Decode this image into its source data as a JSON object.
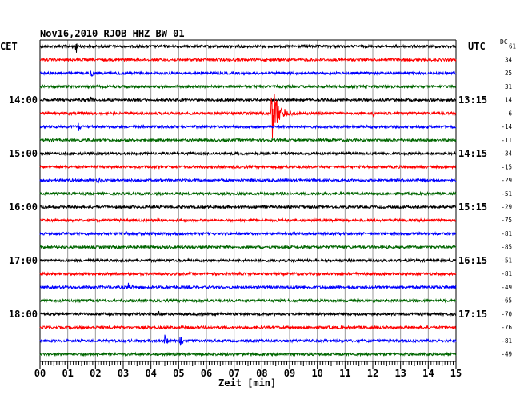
{
  "header": {
    "title": "Nov16,2010  RJOB HHZ BW 01",
    "left_timezone": "CET",
    "right_timezone": "UTC",
    "offset_header": "DC"
  },
  "x_axis": {
    "label": "Zeit [min]",
    "ticks": [
      "00",
      "01",
      "02",
      "03",
      "04",
      "05",
      "06",
      "07",
      "08",
      "09",
      "10",
      "11",
      "12",
      "13",
      "14",
      "15"
    ]
  },
  "trace_colors": [
    "#000000",
    "#ff0000",
    "#0000ff",
    "#006600"
  ],
  "traces": [
    {
      "left": "",
      "right": "",
      "offset": "61"
    },
    {
      "left": "",
      "right": "",
      "offset": "34"
    },
    {
      "left": "",
      "right": "",
      "offset": "25"
    },
    {
      "left": "",
      "right": "",
      "offset": "31"
    },
    {
      "left": "14:00",
      "right": "13:15",
      "offset": "14"
    },
    {
      "left": "",
      "right": "",
      "offset": "-6"
    },
    {
      "left": "",
      "right": "",
      "offset": "-14"
    },
    {
      "left": "",
      "right": "",
      "offset": "-11"
    },
    {
      "left": "15:00",
      "right": "14:15",
      "offset": "-34"
    },
    {
      "left": "",
      "right": "",
      "offset": "-15"
    },
    {
      "left": "",
      "right": "",
      "offset": "-29"
    },
    {
      "left": "",
      "right": "",
      "offset": "-51"
    },
    {
      "left": "16:00",
      "right": "15:15",
      "offset": "-29"
    },
    {
      "left": "",
      "right": "",
      "offset": "-75"
    },
    {
      "left": "",
      "right": "",
      "offset": "-81"
    },
    {
      "left": "",
      "right": "",
      "offset": "-85"
    },
    {
      "left": "17:00",
      "right": "16:15",
      "offset": "-51"
    },
    {
      "left": "",
      "right": "",
      "offset": "-81"
    },
    {
      "left": "",
      "right": "",
      "offset": "-49"
    },
    {
      "left": "",
      "right": "",
      "offset": "-65"
    },
    {
      "left": "18:00",
      "right": "17:15",
      "offset": "-70"
    },
    {
      "left": "",
      "right": "",
      "offset": "-76"
    },
    {
      "left": "",
      "right": "",
      "offset": "-81"
    },
    {
      "left": "",
      "right": "",
      "offset": "-49"
    }
  ],
  "events": [
    {
      "trace": 0,
      "minute": 1.3,
      "amplitude": 8
    },
    {
      "trace": 2,
      "minute": 1.85,
      "amplitude": 6
    },
    {
      "trace": 4,
      "minute": 1.85,
      "amplitude": 5
    },
    {
      "trace": 5,
      "minute": 8.35,
      "amplitude": 36
    },
    {
      "trace": 5,
      "minute": 12.0,
      "amplitude": 4
    },
    {
      "trace": 6,
      "minute": 1.4,
      "amplitude": 6
    },
    {
      "trace": 10,
      "minute": 2.05,
      "amplitude": 9
    },
    {
      "trace": 14,
      "minute": 3.05,
      "amplitude": 4
    },
    {
      "trace": 18,
      "minute": 3.2,
      "amplitude": 6
    },
    {
      "trace": 20,
      "minute": 4.3,
      "amplitude": 5
    },
    {
      "trace": 22,
      "minute": 4.5,
      "amplitude": 8
    },
    {
      "trace": 22,
      "minute": 5.05,
      "amplitude": 9
    }
  ]
}
